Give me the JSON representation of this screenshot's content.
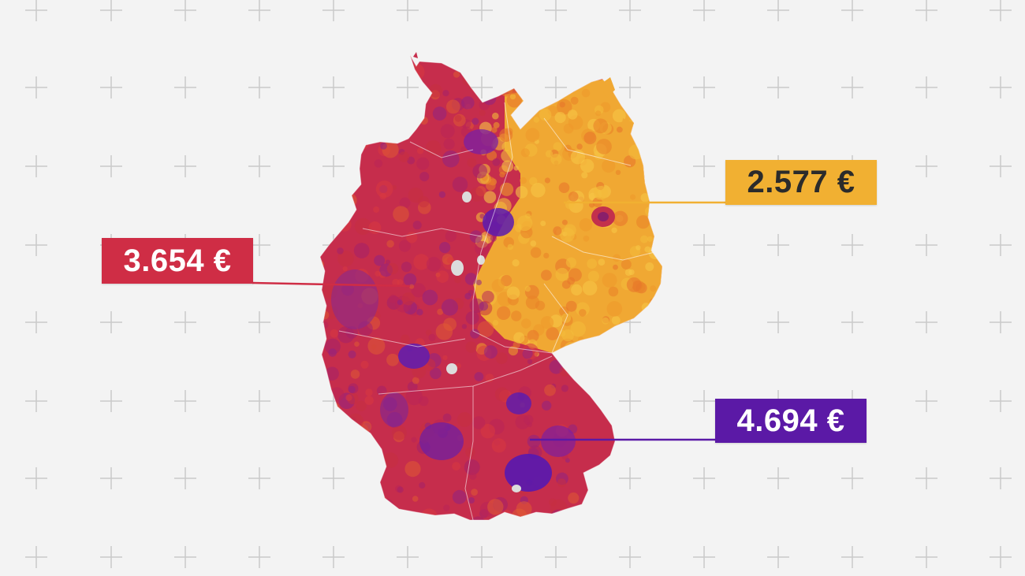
{
  "map": {
    "region": "Germany",
    "legend_colors": {
      "low": "#f2b233",
      "mid_low": "#ef8a2b",
      "mid": "#e04a36",
      "mid_high": "#c0265a",
      "high": "#5a1bb0"
    },
    "background_color": "#f3f3f3",
    "grid_marker": "plus-sign"
  },
  "annotations": [
    {
      "id": "west",
      "text": "3.654 €",
      "color": "#cf2d45",
      "text_color": "#ffffff"
    },
    {
      "id": "east",
      "text": "2.577 €",
      "color": "#f1b032",
      "text_color": "#2b2b2b"
    },
    {
      "id": "south",
      "text": "4.694 €",
      "color": "#5b19a6",
      "text_color": "#ffffff"
    }
  ]
}
